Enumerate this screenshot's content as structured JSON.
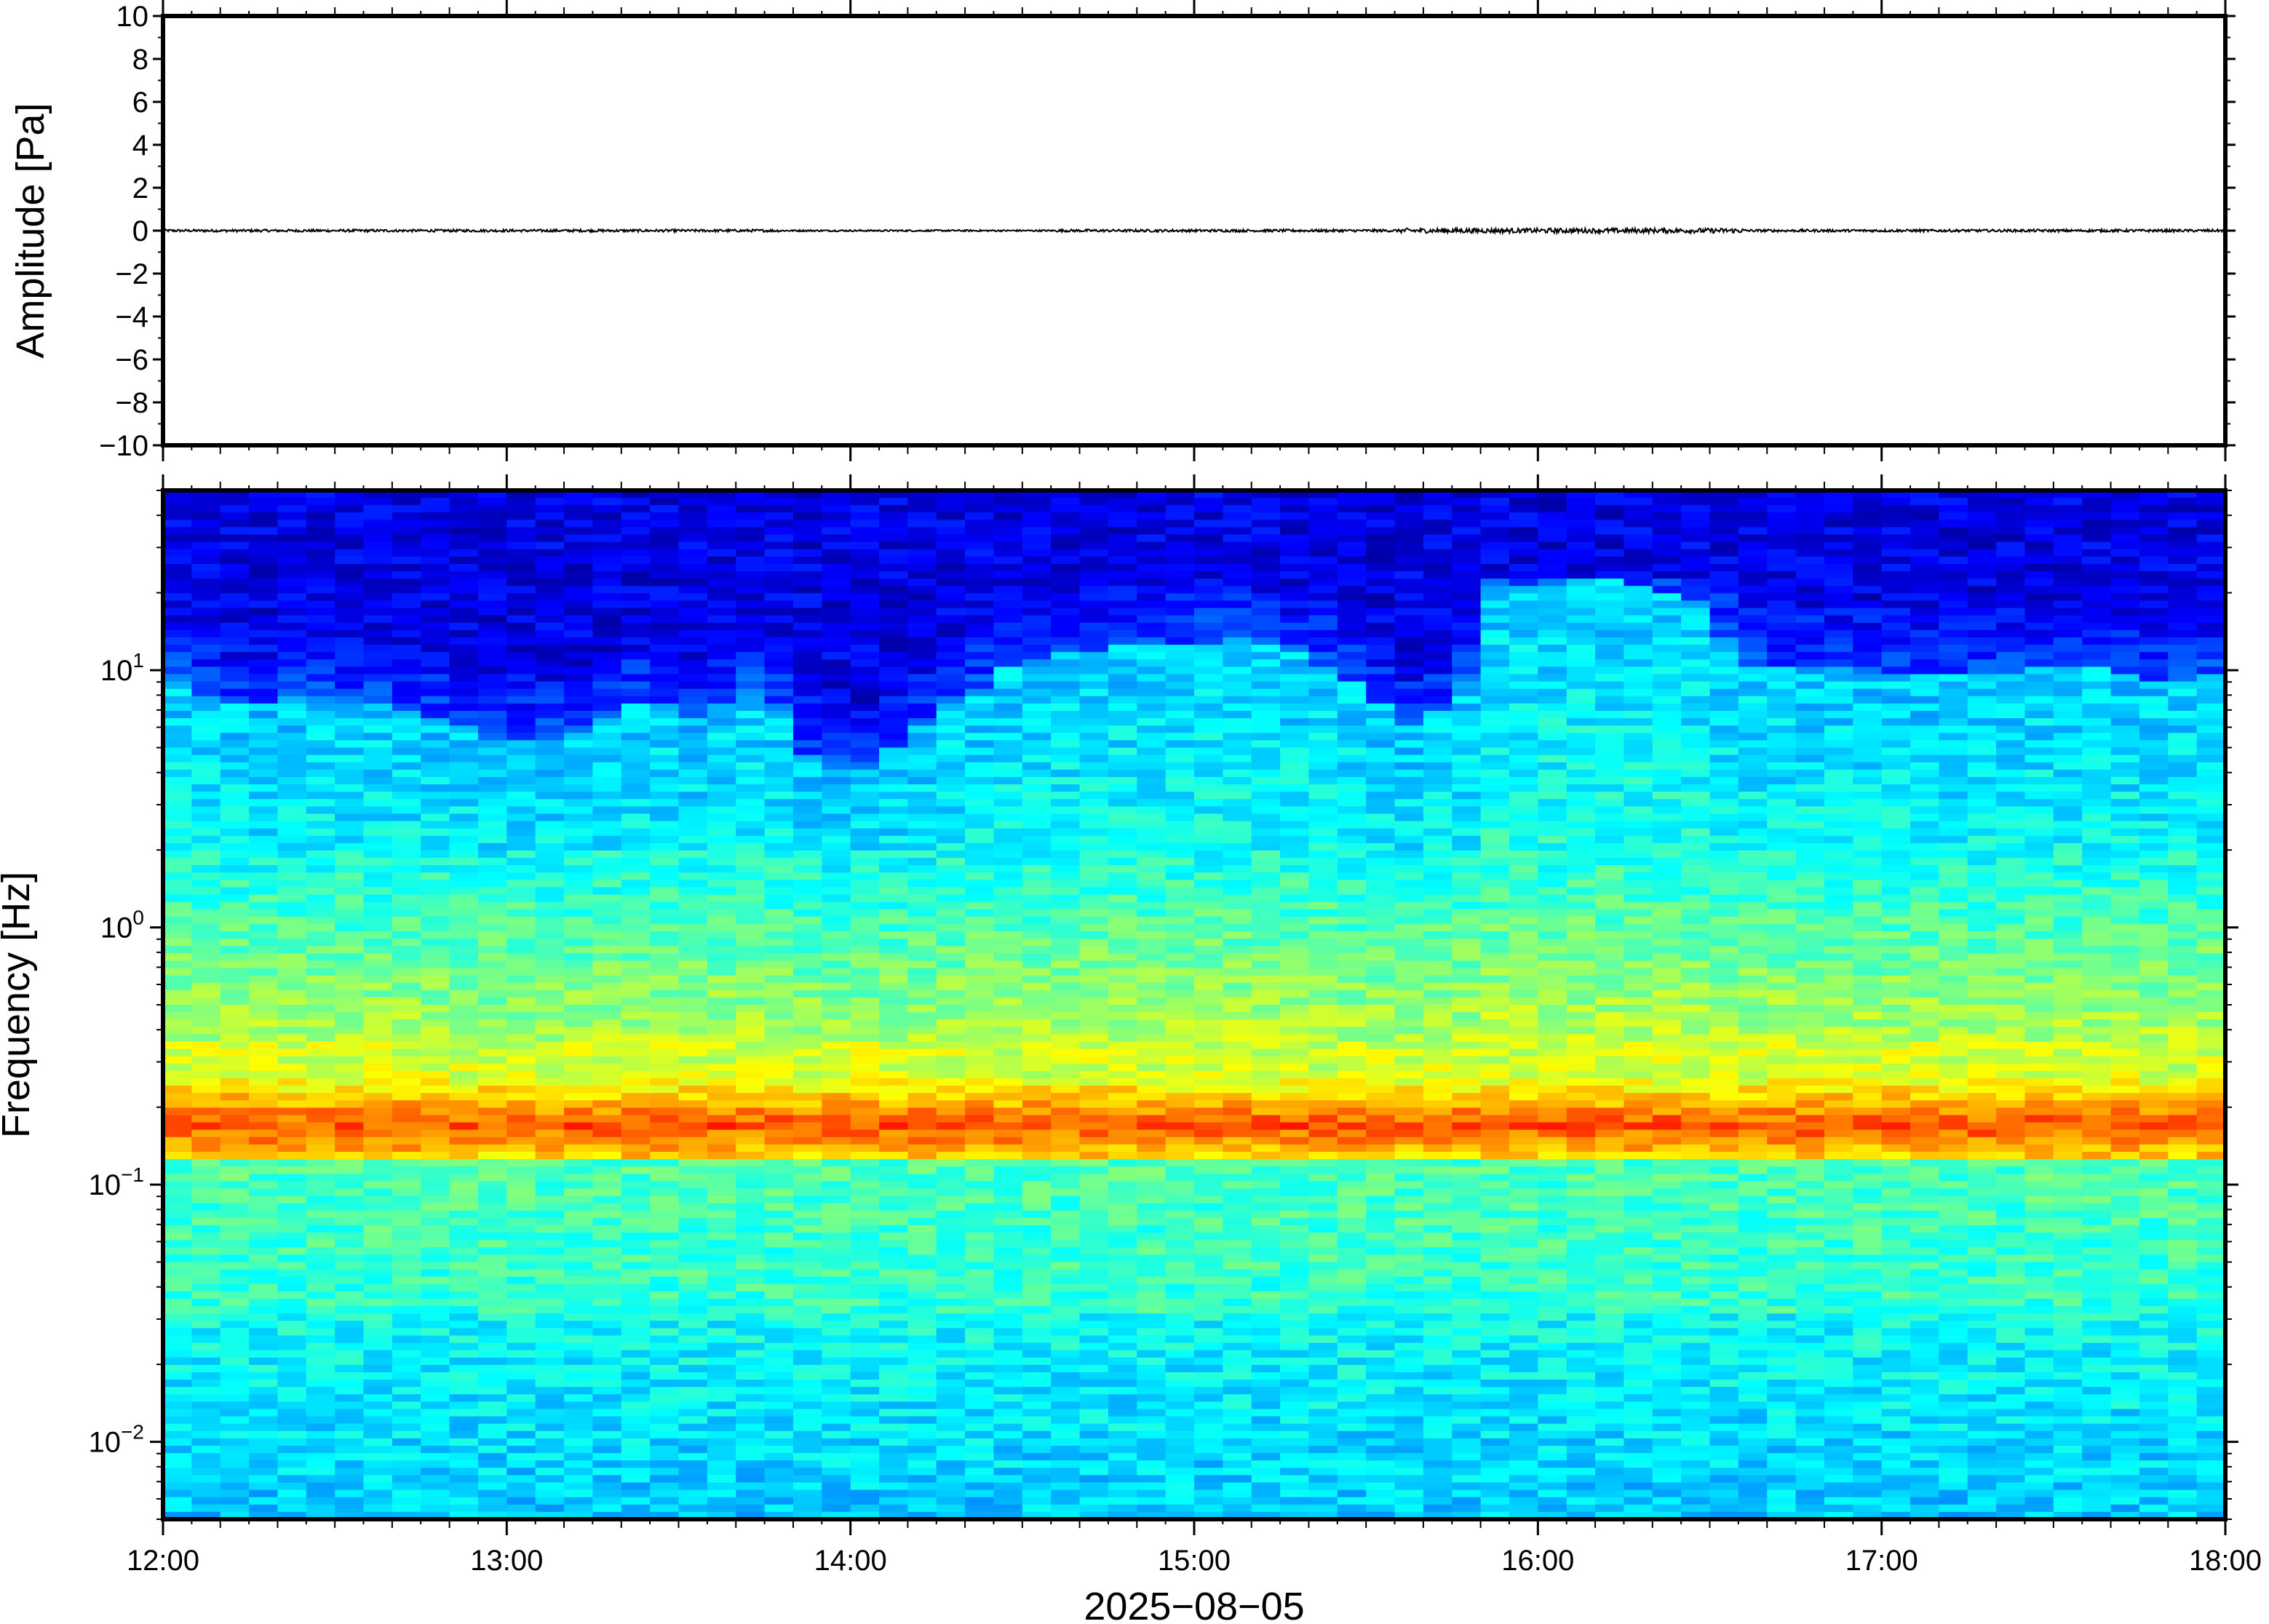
{
  "chart_data": [
    {
      "type": "line",
      "ylabel": "Amplitude [Pa]",
      "ylim": [
        -10,
        10
      ],
      "y_ticks": [
        {
          "value": 10,
          "label": "10"
        },
        {
          "value": 8,
          "label": "8"
        },
        {
          "value": 6,
          "label": "6"
        },
        {
          "value": 4,
          "label": "4"
        },
        {
          "value": 2,
          "label": "2"
        },
        {
          "value": 0,
          "label": "0"
        },
        {
          "value": -2,
          "label": "−2"
        },
        {
          "value": -4,
          "label": "−4"
        },
        {
          "value": -6,
          "label": "−6"
        },
        {
          "value": -8,
          "label": "−8"
        },
        {
          "value": -10,
          "label": "−10"
        }
      ],
      "xlim": [
        "12:00",
        "18:00"
      ],
      "series": [
        {
          "values": [
            0,
            0,
            0,
            0,
            0,
            0,
            0
          ]
        }
      ],
      "trace_color": "#000000",
      "grid": false
    },
    {
      "type": "heatmap",
      "ylabel": "Frequency [Hz]",
      "xlabel": "2025−08−05",
      "y_scale": "log",
      "ylim": [
        0.005,
        50
      ],
      "y_ticks": [
        {
          "value": 10,
          "label": "10",
          "exp": "1"
        },
        {
          "value": 1,
          "label": "10",
          "exp": "0"
        },
        {
          "value": 0.1,
          "label": "10",
          "exp": "−1"
        },
        {
          "value": 0.01,
          "label": "10",
          "exp": "−2"
        }
      ],
      "x_ticks": [
        "12:00",
        "13:00",
        "14:00",
        "15:00",
        "16:00",
        "17:00",
        "18:00"
      ],
      "xlim": [
        "12:00",
        "18:00"
      ],
      "microseism_peak_hz": 0.17,
      "colormap": "jet",
      "grid": false
    }
  ]
}
